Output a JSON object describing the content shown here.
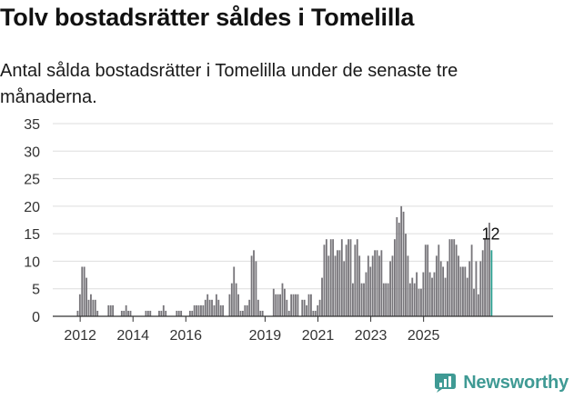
{
  "header": {
    "title": "Tolv bostadsrätter såldes i Tomelilla",
    "subtitle": "Antal sålda bostadsrätter i Tomelilla under de senaste tre månaderna."
  },
  "brand": {
    "name": "Newsworthy"
  },
  "colors": {
    "bar": "#77757a",
    "highlight": "#2a9d8f",
    "brand": "#3f9a94",
    "grid": "#dedede"
  },
  "chart_data": {
    "type": "bar",
    "x_unit": "month",
    "start_month": "2011-12",
    "ylim": [
      0,
      35
    ],
    "yticks": [
      0,
      5,
      10,
      15,
      20,
      25,
      30,
      35
    ],
    "xticks": [
      "2012",
      "2014",
      "2016",
      "2019",
      "2021",
      "2023",
      "2025"
    ],
    "highlight_last": true,
    "annotation": "12",
    "grid": true,
    "values": [
      1,
      4,
      9,
      9,
      7,
      3,
      4,
      3,
      3,
      1,
      0,
      0,
      0,
      0,
      2,
      2,
      2,
      0,
      0,
      0,
      1,
      1,
      2,
      1,
      1,
      0,
      0,
      0,
      0,
      0,
      0,
      1,
      1,
      1,
      0,
      0,
      0,
      1,
      1,
      2,
      1,
      0,
      0,
      0,
      0,
      1,
      1,
      1,
      0,
      0,
      0,
      1,
      1,
      2,
      2,
      2,
      2,
      2,
      3,
      4,
      3,
      3,
      2,
      4,
      3,
      2,
      2,
      0,
      0,
      4,
      6,
      9,
      6,
      4,
      1,
      1,
      2,
      2,
      3,
      11,
      12,
      10,
      3,
      1,
      1,
      0,
      0,
      0,
      0,
      5,
      4,
      4,
      4,
      6,
      5,
      3,
      1,
      4,
      4,
      4,
      4,
      0,
      3,
      3,
      2,
      4,
      4,
      1,
      1,
      2,
      3,
      7,
      13,
      14,
      11,
      14,
      14,
      11,
      12,
      12,
      14,
      10,
      13,
      14,
      14,
      6,
      13,
      14,
      11,
      6,
      6,
      8,
      11,
      9,
      11,
      12,
      12,
      11,
      12,
      6,
      6,
      6,
      10,
      11,
      14,
      18,
      17,
      20,
      19,
      15,
      11,
      6,
      7,
      6,
      8,
      5,
      5,
      8,
      13,
      13,
      8,
      7,
      8,
      11,
      13,
      10,
      9,
      7,
      10,
      14,
      14,
      14,
      13,
      11,
      9,
      9,
      9,
      7,
      10,
      13,
      5,
      10,
      4,
      10,
      12,
      14,
      14,
      17,
      12
    ],
    "last_value": 12
  }
}
